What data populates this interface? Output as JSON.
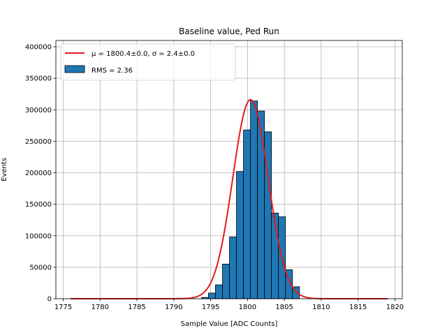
{
  "chart_data": {
    "type": "bar",
    "title": "Baseline value, Ped Run",
    "xlabel": "Sample Value [ADC Counts]",
    "ylabel": "Events",
    "xlim": [
      1774.0,
      1821.0
    ],
    "ylim": [
      0,
      410000
    ],
    "xticks": [
      1775,
      1780,
      1785,
      1790,
      1795,
      1800,
      1805,
      1810,
      1815,
      1820
    ],
    "yticks": [
      0,
      50000,
      100000,
      150000,
      200000,
      250000,
      300000,
      350000,
      400000
    ],
    "grid": true,
    "legend_position": "top-left",
    "bin_width": 0.95,
    "series": [
      {
        "name": "RMS = 2.36",
        "kind": "histogram",
        "color": "#1f77b4",
        "edge_color": "#000000",
        "bin_left_edges": [
          1793.75,
          1794.7,
          1795.65,
          1796.6,
          1797.55,
          1798.5,
          1799.45,
          1800.4,
          1801.35,
          1802.3,
          1803.25,
          1804.2,
          1805.15,
          1806.1
        ],
        "values": [
          2000,
          9000,
          22000,
          55000,
          98000,
          202000,
          268000,
          314000,
          298000,
          265000,
          136000,
          130000,
          46000,
          19000
        ]
      },
      {
        "name": "$\\mu = 1800.4\\pm0.0,\\ \\sigma = 2.4\\pm0.0$",
        "kind": "gaussian-fit",
        "color": "#e41a1c",
        "amplitude": 316000,
        "mean": 1800.4,
        "sigma": 2.4,
        "x_range": [
          1776,
          1819
        ]
      }
    ]
  },
  "legend": {
    "fit_label": "μ = 1800.4±0.0, σ = 2.4±0.0",
    "hist_label": "RMS = 2.36"
  }
}
